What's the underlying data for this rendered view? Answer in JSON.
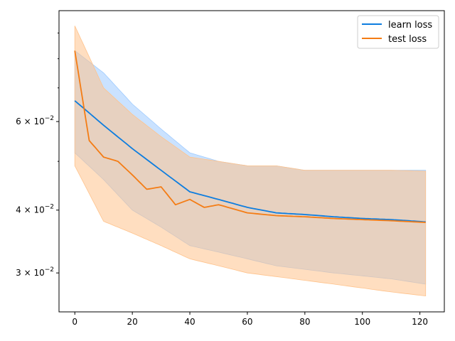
{
  "chart_data": {
    "type": "line",
    "yscale": "log",
    "xlim": [
      -5.5,
      128.5
    ],
    "ylim": [
      0.0251,
      0.0997
    ],
    "x_ticks": [
      0,
      20,
      40,
      60,
      80,
      100,
      120
    ],
    "x_tick_labels": [
      "0",
      "20",
      "40",
      "60",
      "80",
      "100",
      "120"
    ],
    "y_ticks": [
      0.03,
      0.04,
      0.06
    ],
    "y_tick_labels": [
      {
        "base": "3",
        "exp": "−2"
      },
      {
        "base": "4",
        "exp": "−2"
      },
      {
        "base": "6",
        "exp": "−2"
      }
    ],
    "y_minor_ticks": [
      0.05,
      0.07,
      0.08,
      0.09
    ],
    "legend_position": "upper right",
    "grid": false,
    "series": [
      {
        "name": "learn loss",
        "color": "#1f77b4",
        "display_color": "#0d7ddf",
        "band_color": "#9ecbff",
        "points": [
          [
            0,
            0.066
          ],
          [
            10,
            0.059
          ],
          [
            20,
            0.053
          ],
          [
            30,
            0.048
          ],
          [
            40,
            0.0435
          ],
          [
            50,
            0.042
          ],
          [
            60,
            0.0405
          ],
          [
            70,
            0.0395
          ],
          [
            80,
            0.0392
          ],
          [
            90,
            0.0388
          ],
          [
            100,
            0.0385
          ],
          [
            110,
            0.0383
          ],
          [
            122,
            0.0379
          ]
        ],
        "upper": [
          [
            0,
            0.083
          ],
          [
            10,
            0.075
          ],
          [
            20,
            0.065
          ],
          [
            30,
            0.058
          ],
          [
            40,
            0.052
          ],
          [
            50,
            0.05
          ],
          [
            60,
            0.049
          ],
          [
            70,
            0.049
          ],
          [
            80,
            0.048
          ],
          [
            90,
            0.048
          ],
          [
            100,
            0.048
          ],
          [
            110,
            0.048
          ],
          [
            122,
            0.048
          ]
        ],
        "lower": [
          [
            0,
            0.052
          ],
          [
            10,
            0.046
          ],
          [
            20,
            0.04
          ],
          [
            30,
            0.037
          ],
          [
            40,
            0.034
          ],
          [
            50,
            0.033
          ],
          [
            60,
            0.032
          ],
          [
            70,
            0.031
          ],
          [
            80,
            0.0305
          ],
          [
            90,
            0.03
          ],
          [
            100,
            0.0296
          ],
          [
            110,
            0.0292
          ],
          [
            122,
            0.0285
          ]
        ]
      },
      {
        "name": "test loss",
        "color": "#ff7f0e",
        "display_color": "#f47c14",
        "band_color": "#ffc38c",
        "points": [
          [
            0,
            0.083
          ],
          [
            5,
            0.055
          ],
          [
            10,
            0.051
          ],
          [
            15,
            0.05
          ],
          [
            20,
            0.047
          ],
          [
            25,
            0.044
          ],
          [
            30,
            0.0445
          ],
          [
            35,
            0.041
          ],
          [
            40,
            0.042
          ],
          [
            45,
            0.0405
          ],
          [
            50,
            0.041
          ],
          [
            60,
            0.0395
          ],
          [
            70,
            0.039
          ],
          [
            80,
            0.0388
          ],
          [
            90,
            0.0385
          ],
          [
            100,
            0.0383
          ],
          [
            110,
            0.0381
          ],
          [
            122,
            0.0378
          ]
        ],
        "upper": [
          [
            0,
            0.093
          ],
          [
            10,
            0.07
          ],
          [
            20,
            0.062
          ],
          [
            30,
            0.056
          ],
          [
            40,
            0.051
          ],
          [
            50,
            0.05
          ],
          [
            60,
            0.049
          ],
          [
            70,
            0.049
          ],
          [
            80,
            0.048
          ],
          [
            90,
            0.048
          ],
          [
            100,
            0.048
          ],
          [
            110,
            0.048
          ],
          [
            122,
            0.0478
          ]
        ],
        "lower": [
          [
            0,
            0.049
          ],
          [
            10,
            0.038
          ],
          [
            20,
            0.036
          ],
          [
            30,
            0.034
          ],
          [
            40,
            0.032
          ],
          [
            50,
            0.031
          ],
          [
            60,
            0.03
          ],
          [
            70,
            0.0295
          ],
          [
            80,
            0.029
          ],
          [
            90,
            0.0285
          ],
          [
            100,
            0.028
          ],
          [
            110,
            0.0275
          ],
          [
            122,
            0.027
          ]
        ]
      }
    ]
  }
}
